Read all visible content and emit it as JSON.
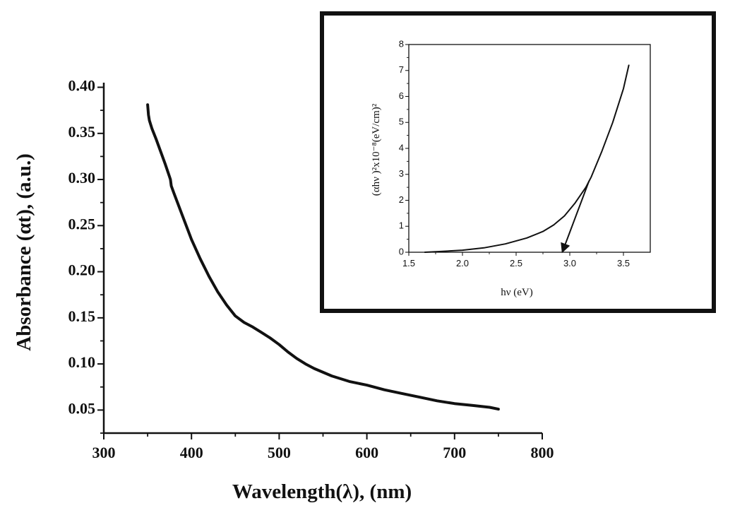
{
  "chart_data": [
    {
      "type": "line",
      "xlabel": "Wavelength(λ), (nm)",
      "ylabel": "Absorbance (αt), (a.u.)",
      "xlim": [
        300,
        800
      ],
      "ylim": [
        0.025,
        0.405
      ],
      "xticks": [
        300,
        400,
        500,
        600,
        700,
        800
      ],
      "xtick_labels": [
        "300",
        "400",
        "500",
        "600",
        "700",
        "800"
      ],
      "yticks": [
        0.05,
        0.1,
        0.15,
        0.2,
        0.25,
        0.3,
        0.35,
        0.4
      ],
      "ytick_labels": [
        "0.05",
        "0.10",
        "0.15",
        "0.20",
        "0.25",
        "0.30",
        "0.35",
        "0.40"
      ],
      "grid": false,
      "series": [
        {
          "x": [
            350,
            351,
            352,
            355,
            360,
            365,
            370,
            375,
            376,
            377,
            380,
            390,
            400,
            410,
            420,
            430,
            440,
            450,
            460,
            470,
            480,
            490,
            500,
            510,
            520,
            530,
            540,
            550,
            560,
            580,
            600,
            620,
            640,
            660,
            680,
            700,
            720,
            740,
            750
          ],
          "y": [
            0.381,
            0.37,
            0.364,
            0.355,
            0.343,
            0.33,
            0.317,
            0.303,
            0.3,
            0.293,
            0.285,
            0.26,
            0.235,
            0.214,
            0.195,
            0.178,
            0.164,
            0.152,
            0.145,
            0.14,
            0.134,
            0.128,
            0.121,
            0.113,
            0.106,
            0.1,
            0.095,
            0.091,
            0.087,
            0.081,
            0.077,
            0.072,
            0.068,
            0.064,
            0.06,
            0.057,
            0.055,
            0.053,
            0.051
          ]
        }
      ]
    },
    {
      "type": "line",
      "xlabel": "hν (eV)",
      "ylabel": "(αhν )²x10⁻⁸(eV/cm)²",
      "xlim": [
        1.5,
        3.75
      ],
      "ylim": [
        0,
        8
      ],
      "xticks": [
        1.5,
        2.0,
        2.5,
        3.0,
        3.5
      ],
      "xtick_labels": [
        "1.5",
        "2.0",
        "2.5",
        "3.0",
        "3.5"
      ],
      "yticks": [
        0,
        1,
        2,
        3,
        4,
        5,
        6,
        7,
        8
      ],
      "ytick_labels": [
        "0",
        "1",
        "2",
        "3",
        "4",
        "5",
        "6",
        "7",
        "8"
      ],
      "grid": false,
      "series": [
        {
          "x": [
            1.65,
            1.8,
            2.0,
            2.2,
            2.4,
            2.6,
            2.75,
            2.85,
            2.95,
            3.05,
            3.15,
            3.2,
            3.3,
            3.4,
            3.5,
            3.55
          ],
          "y": [
            0.0,
            0.03,
            0.08,
            0.17,
            0.32,
            0.55,
            0.8,
            1.05,
            1.4,
            1.9,
            2.5,
            2.9,
            3.9,
            5.0,
            6.3,
            7.2
          ]
        }
      ],
      "annotation": {
        "type": "arrow",
        "from": [
          3.18,
          2.75
        ],
        "to": [
          2.93,
          0.0
        ]
      }
    }
  ]
}
